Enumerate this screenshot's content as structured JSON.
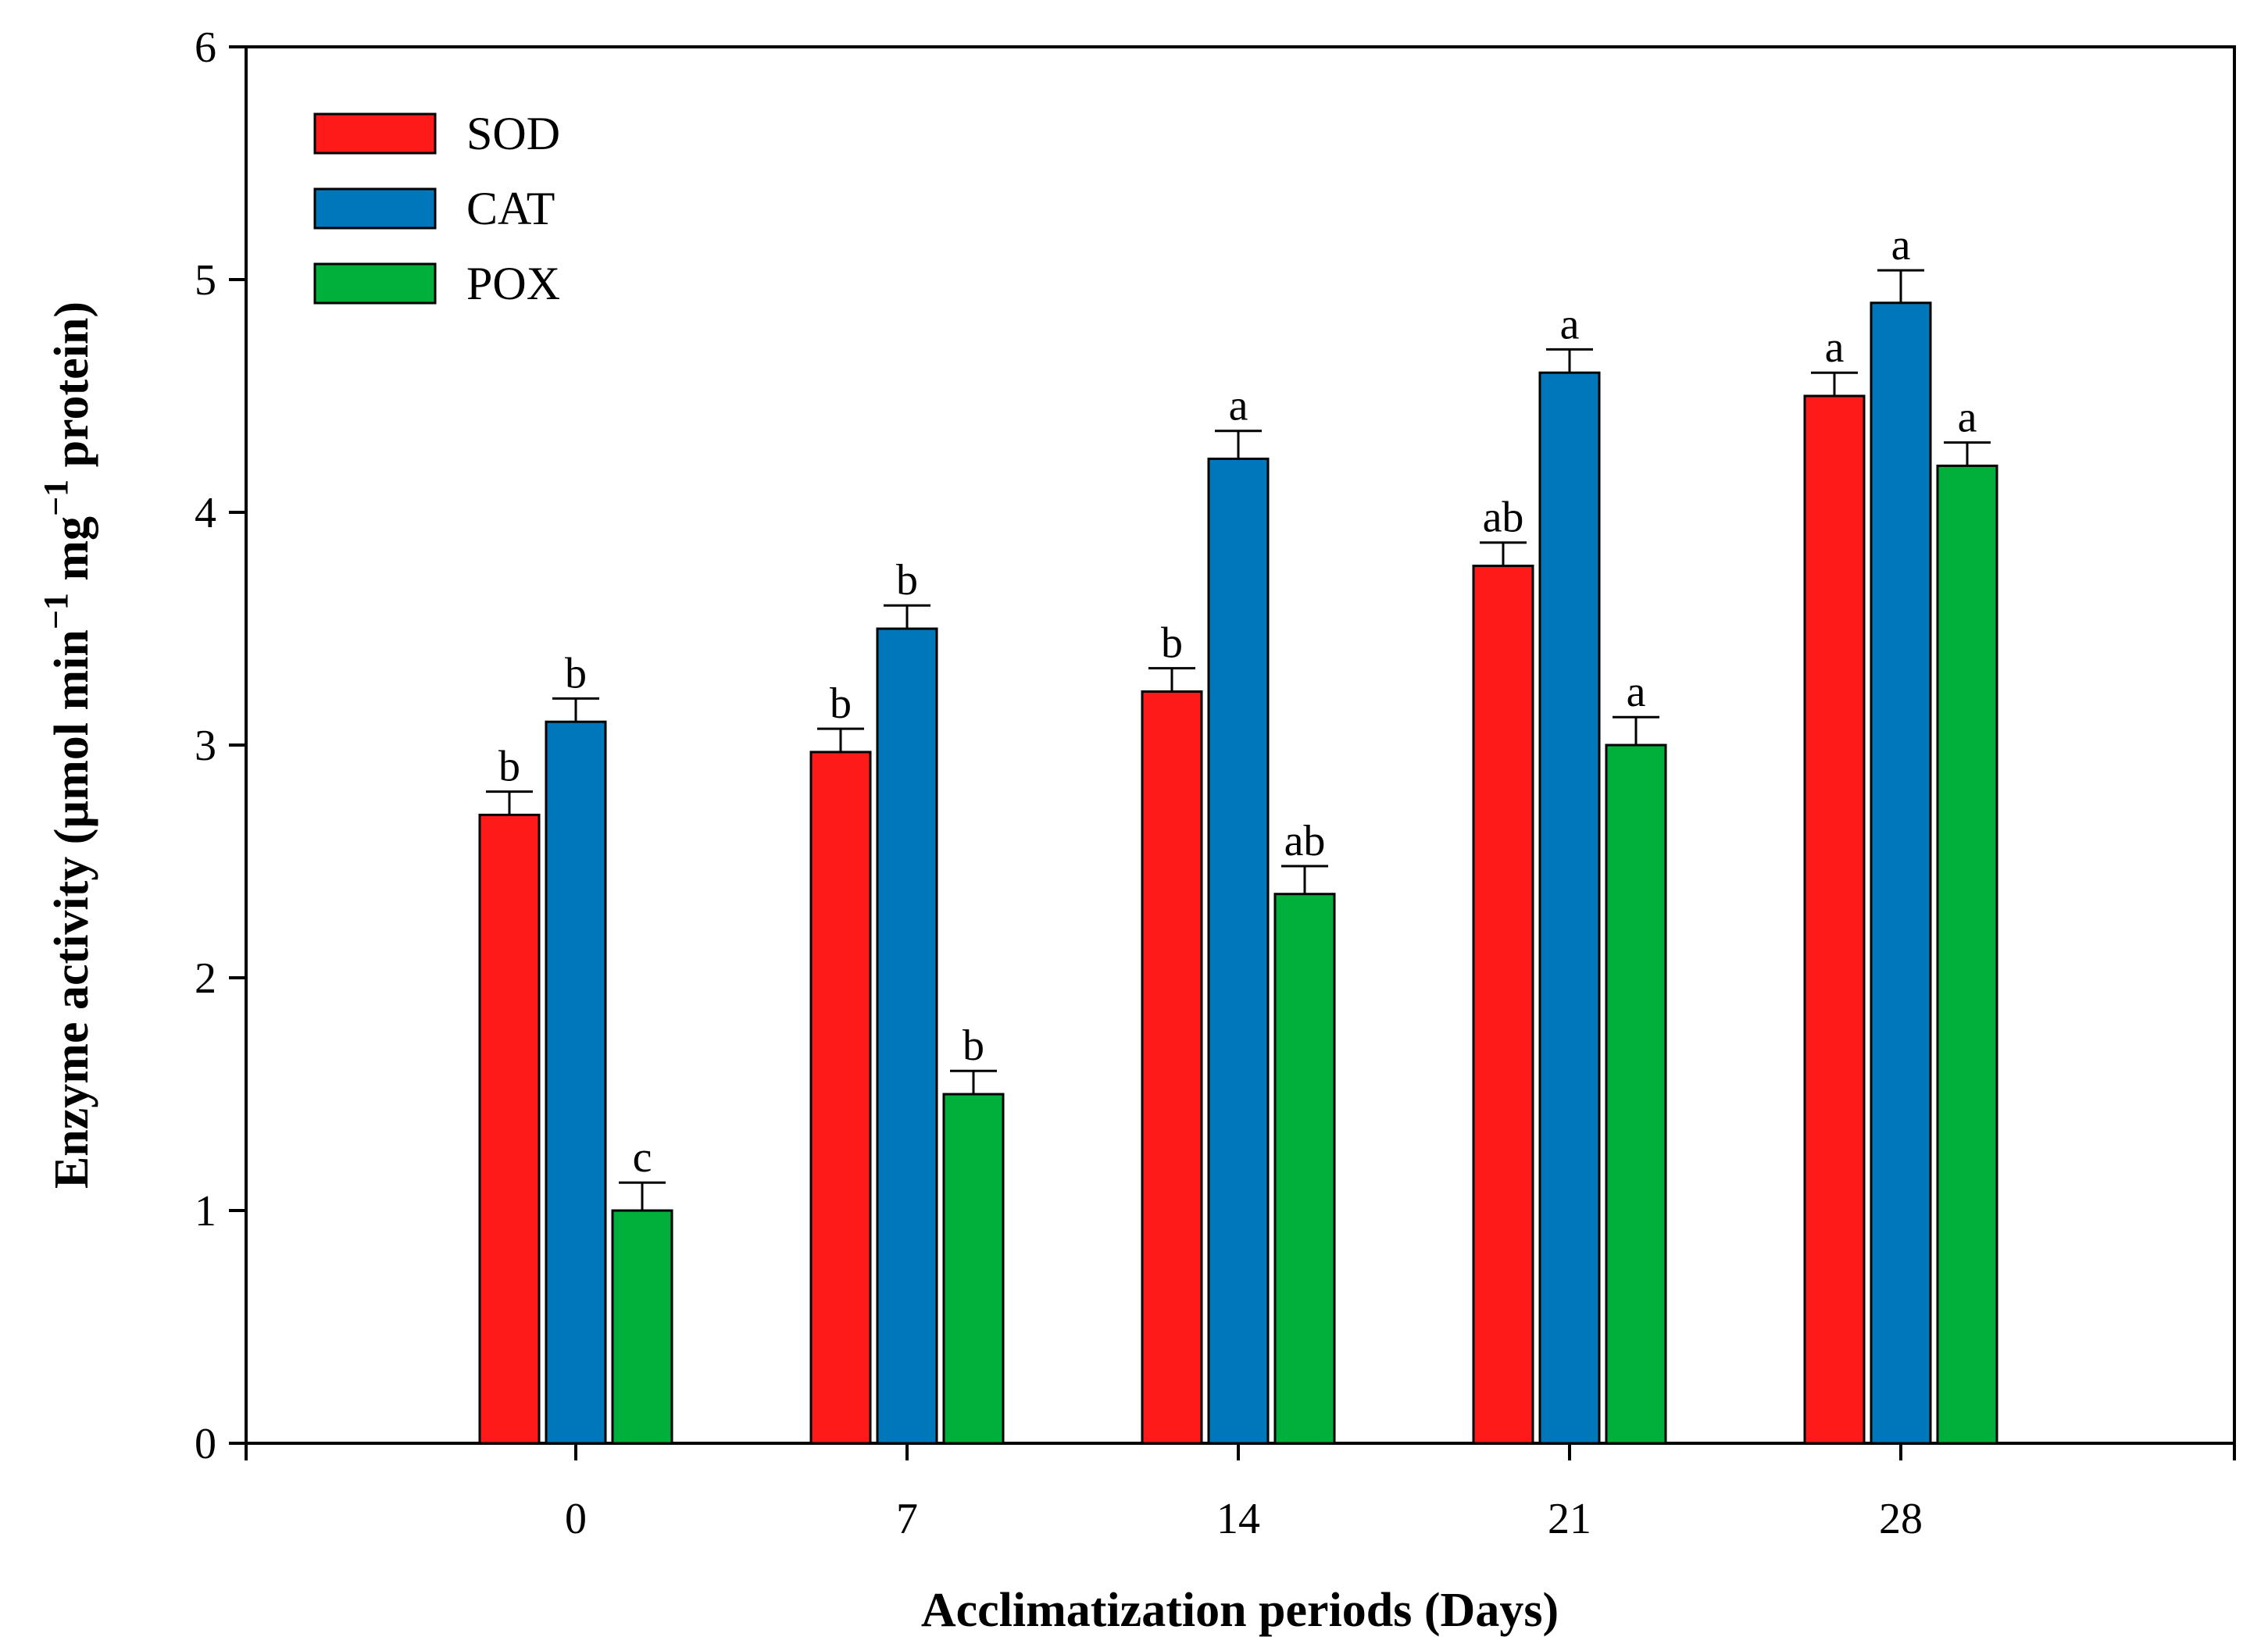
{
  "chart_data": {
    "type": "bar",
    "title": "",
    "xlabel": "Acclimatization periods (Days)",
    "ylabel": {
      "prefix": "Enzyme activity (µmol min",
      "exp1": "−1",
      "middle": " mg",
      "exp2": "−1",
      "suffix": " protein)"
    },
    "ylim": [
      0,
      6
    ],
    "yticks": [
      "0",
      "1",
      "2",
      "3",
      "4",
      "5",
      "6"
    ],
    "categories": [
      "0",
      "7",
      "14",
      "21",
      "28"
    ],
    "legend_position": "top-left",
    "grid": false,
    "series": [
      {
        "name": "SOD",
        "color": "#ff1a1a",
        "values": [
          2.7,
          2.97,
          3.23,
          3.77,
          4.5
        ],
        "errors": [
          0.1,
          0.1,
          0.1,
          0.1,
          0.1
        ],
        "labels": [
          "b",
          "b",
          "b",
          "ab",
          "a"
        ]
      },
      {
        "name": "CAT",
        "color": "#0077bb",
        "values": [
          3.1,
          3.5,
          4.23,
          4.6,
          4.9
        ],
        "errors": [
          0.1,
          0.1,
          0.12,
          0.1,
          0.14
        ],
        "labels": [
          "b",
          "b",
          "a",
          "a",
          "a"
        ]
      },
      {
        "name": "POX",
        "color": "#00b03a",
        "values": [
          1.0,
          1.5,
          2.36,
          3.0,
          4.2
        ],
        "errors": [
          0.12,
          0.1,
          0.12,
          0.12,
          0.1
        ],
        "labels": [
          "c",
          "b",
          "ab",
          "a",
          "a"
        ]
      }
    ]
  }
}
